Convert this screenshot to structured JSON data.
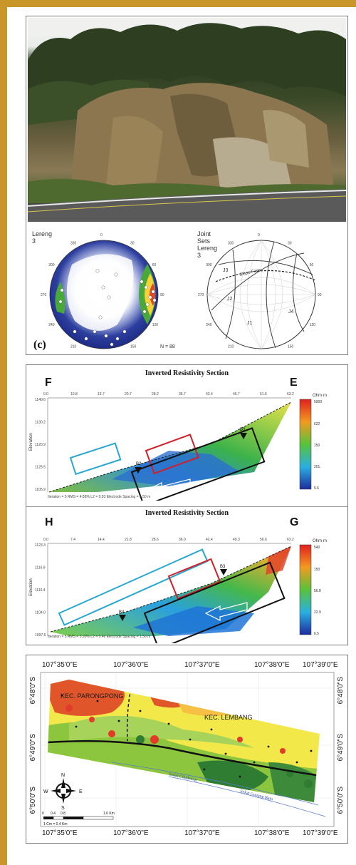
{
  "figure1": {
    "stereonet_left_title": "Lereng 3",
    "stereonet_right_title": "Joint Sets Lereng 3",
    "azimuths": [
      "0",
      "30",
      "60",
      "90",
      "120",
      "150",
      "180",
      "210",
      "240",
      "270",
      "300",
      "330"
    ],
    "joint_labels": [
      "J1",
      "J2",
      "J3",
      "J4"
    ],
    "plane_label": "Slope Face",
    "fig_tag": "(c)",
    "count_label": "N = 88"
  },
  "figure2": {
    "top": {
      "title": "Inverted Resistivity Section",
      "left_label": "F",
      "right_label": "E",
      "x_ticks": [
        "0.0",
        "10.8",
        "13.7",
        "20.7",
        "28.2",
        "35.7",
        "43.4",
        "46.7",
        "51.6",
        "63.2"
      ],
      "elev_ticks": [
        "1140.6",
        "1130.2",
        "1120.9",
        "1125.5",
        "1105.9"
      ],
      "ylabel": "Elevation",
      "borehole_labels": [
        "B2",
        "B3"
      ],
      "caption": "Iteration = 5   RMS = 4.88%   L2 = 0.93   Electrode Spacing = 1.50 m",
      "scale_title": "Ohm·m",
      "scale_values": [
        "5900",
        "622",
        "150",
        "201.",
        "5.6"
      ]
    },
    "bottom": {
      "title": "Inverted Resistivity Section",
      "left_label": "H",
      "right_label": "G",
      "x_ticks": [
        "0.0",
        "7.4",
        "14.4",
        "21.8",
        "28.6",
        "36.0",
        "42.4",
        "49.3",
        "56.6",
        "63.2"
      ],
      "elev_ticks": [
        "1123.3",
        "1116.9",
        "1116.4",
        "1104.0",
        "1097.6"
      ],
      "ylabel": "Elevation",
      "borehole_labels": [
        "B4",
        "B3"
      ],
      "caption": "Iteration = 5   RMS = 5.99%   L2 = 0.46   Electrode Spacing = 1.50 m",
      "scale_title": "Ohm·m",
      "scale_values": [
        "540",
        "150",
        "56.8",
        "22.9",
        "6.5"
      ]
    }
  },
  "figure3": {
    "lon_labels": [
      "107°35'0\"E",
      "107°36'0\"E",
      "107°37'0\"E",
      "107°38'0\"E",
      "107°39'0\"E"
    ],
    "lat_labels": [
      "6°48'0\"S",
      "6°49'0\"S",
      "6°50'0\"S"
    ],
    "place_1": "KEC. PARONGPONG",
    "place_2": "KEC. LEMBANG",
    "fault_1": "Sekat Cihideung",
    "fault_2": "Sekat Gunung Batu",
    "north": "N",
    "south": "S",
    "east": "E",
    "west": "W",
    "scale_ticks": [
      "0",
      "0.4",
      "0.8",
      "1.6 Km"
    ],
    "scale_note": "1 Cm = 0.4 Km",
    "colors": {
      "red": "#e0562a",
      "yellow": "#f2e84a",
      "green": "#8cc63f",
      "dark_green": "#2e7d32"
    }
  }
}
